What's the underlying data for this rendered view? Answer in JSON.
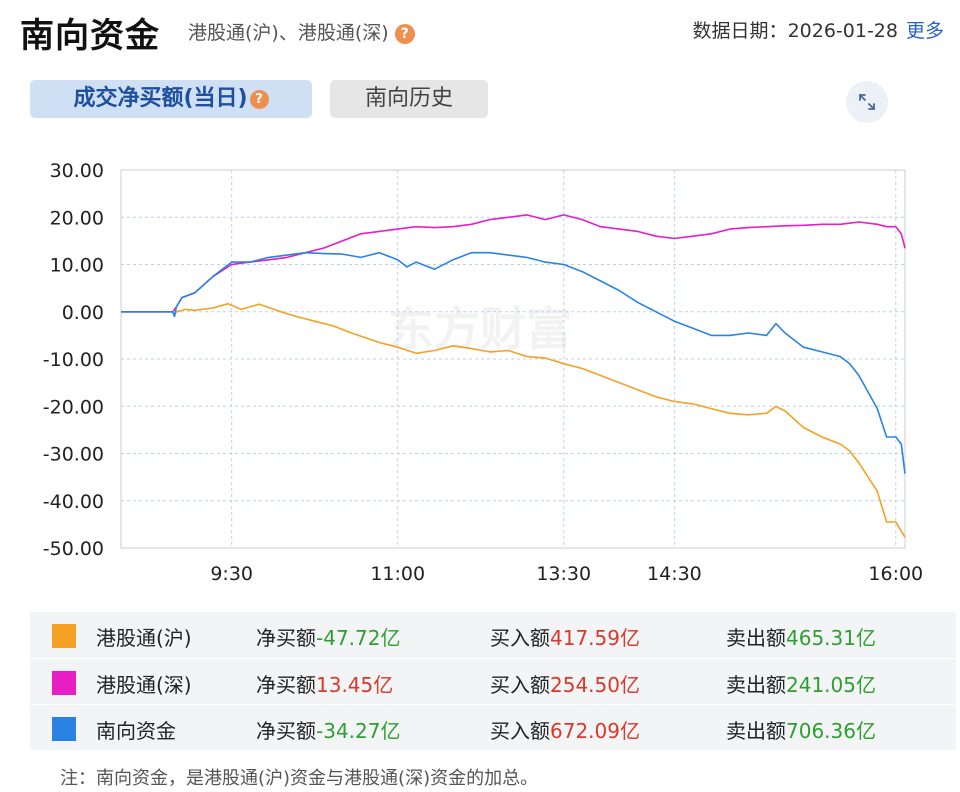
{
  "header": {
    "title": "南向资金",
    "subtitle": "港股通(沪)、港股通(深)",
    "date_label": "数据日期：",
    "date": "2026-01-28",
    "more": "更多"
  },
  "tabs": [
    {
      "label": "成交净买额(当日)",
      "active": true
    },
    {
      "label": "南向历史",
      "active": false
    }
  ],
  "watermark": "东方财富",
  "chart_data": {
    "type": "line",
    "xlabel": "",
    "ylabel": "",
    "y_ticks": [
      "30.00",
      "20.00",
      "10.00",
      "0.00",
      "-10.00",
      "-20.00",
      "-30.00",
      "-40.00",
      "-50.00"
    ],
    "ylim": [
      -50,
      30
    ],
    "x_ticks": [
      "9:30",
      "11:00",
      "13:30",
      "14:30",
      "16:00"
    ],
    "x_tick_minutes": [
      30,
      120,
      210,
      270,
      390
    ],
    "xlim": [
      -30,
      395
    ],
    "grid": true,
    "series": [
      {
        "name": "港股通(沪)",
        "color": "#f4a124",
        "points": [
          [
            -30,
            0
          ],
          [
            -2,
            0
          ],
          [
            -1,
            -0.8
          ],
          [
            0,
            0
          ],
          [
            5,
            0.5
          ],
          [
            10,
            0.3
          ],
          [
            20,
            0.8
          ],
          [
            28,
            1.7
          ],
          [
            35,
            0.5
          ],
          [
            45,
            1.6
          ],
          [
            55,
            0.2
          ],
          [
            65,
            -1
          ],
          [
            75,
            -2
          ],
          [
            85,
            -3
          ],
          [
            95,
            -4.5
          ],
          [
            110,
            -6.5
          ],
          [
            120,
            -7.5
          ],
          [
            130,
            -8.8
          ],
          [
            140,
            -8.2
          ],
          [
            150,
            -7.2
          ],
          [
            160,
            -7.8
          ],
          [
            170,
            -8.5
          ],
          [
            180,
            -8.2
          ],
          [
            190,
            -9.5
          ],
          [
            200,
            -9.8
          ],
          [
            210,
            -11
          ],
          [
            220,
            -12
          ],
          [
            230,
            -13.5
          ],
          [
            240,
            -15
          ],
          [
            250,
            -16.5
          ],
          [
            260,
            -18
          ],
          [
            270,
            -19
          ],
          [
            280,
            -19.5
          ],
          [
            290,
            -20.5
          ],
          [
            300,
            -21.5
          ],
          [
            310,
            -21.8
          ],
          [
            320,
            -21.5
          ],
          [
            325,
            -20
          ],
          [
            330,
            -21
          ],
          [
            340,
            -24.5
          ],
          [
            350,
            -26.5
          ],
          [
            360,
            -28
          ],
          [
            365,
            -29.5
          ],
          [
            370,
            -32
          ],
          [
            375,
            -35
          ],
          [
            380,
            -38
          ],
          [
            385,
            -44.5
          ],
          [
            390,
            -44.5
          ],
          [
            395,
            -47.72
          ]
        ]
      },
      {
        "name": "港股通(深)",
        "color": "#e61ec3",
        "points": [
          [
            -30,
            0
          ],
          [
            -2,
            0
          ],
          [
            0,
            1
          ],
          [
            3,
            3
          ],
          [
            10,
            4
          ],
          [
            20,
            7.5
          ],
          [
            30,
            10
          ],
          [
            40,
            10.5
          ],
          [
            50,
            11
          ],
          [
            60,
            11.5
          ],
          [
            70,
            12.5
          ],
          [
            80,
            13.5
          ],
          [
            90,
            15
          ],
          [
            100,
            16.5
          ],
          [
            110,
            17
          ],
          [
            120,
            17.5
          ],
          [
            130,
            18
          ],
          [
            140,
            17.8
          ],
          [
            150,
            18
          ],
          [
            160,
            18.5
          ],
          [
            170,
            19.5
          ],
          [
            180,
            20
          ],
          [
            190,
            20.5
          ],
          [
            200,
            19.5
          ],
          [
            210,
            20.5
          ],
          [
            220,
            19.5
          ],
          [
            230,
            18
          ],
          [
            240,
            17.5
          ],
          [
            250,
            17
          ],
          [
            260,
            16
          ],
          [
            270,
            15.5
          ],
          [
            280,
            16
          ],
          [
            290,
            16.5
          ],
          [
            300,
            17.5
          ],
          [
            310,
            17.8
          ],
          [
            320,
            18
          ],
          [
            330,
            18.2
          ],
          [
            340,
            18.3
          ],
          [
            350,
            18.5
          ],
          [
            360,
            18.5
          ],
          [
            370,
            19
          ],
          [
            380,
            18.5
          ],
          [
            385,
            18
          ],
          [
            390,
            18
          ],
          [
            393,
            16.5
          ],
          [
            395,
            13.45
          ]
        ]
      },
      {
        "name": "南向资金",
        "color": "#2a82e4",
        "points": [
          [
            -30,
            0
          ],
          [
            -2,
            0
          ],
          [
            -1,
            -1
          ],
          [
            0,
            1
          ],
          [
            3,
            3
          ],
          [
            10,
            4
          ],
          [
            20,
            7.5
          ],
          [
            30,
            10.5
          ],
          [
            40,
            10.5
          ],
          [
            50,
            11.5
          ],
          [
            60,
            12
          ],
          [
            70,
            12.5
          ],
          [
            80,
            12.3
          ],
          [
            90,
            12.2
          ],
          [
            100,
            11.5
          ],
          [
            110,
            12.5
          ],
          [
            120,
            11
          ],
          [
            125,
            9.5
          ],
          [
            130,
            10.5
          ],
          [
            140,
            9
          ],
          [
            150,
            11
          ],
          [
            160,
            12.5
          ],
          [
            170,
            12.5
          ],
          [
            180,
            12
          ],
          [
            190,
            11.5
          ],
          [
            200,
            10.5
          ],
          [
            210,
            10
          ],
          [
            220,
            8.5
          ],
          [
            230,
            6.5
          ],
          [
            240,
            4.5
          ],
          [
            250,
            2
          ],
          [
            260,
            0
          ],
          [
            270,
            -2
          ],
          [
            280,
            -3.5
          ],
          [
            290,
            -5
          ],
          [
            300,
            -5
          ],
          [
            310,
            -4.5
          ],
          [
            320,
            -5
          ],
          [
            325,
            -2.5
          ],
          [
            330,
            -4.5
          ],
          [
            340,
            -7.5
          ],
          [
            350,
            -8.5
          ],
          [
            360,
            -9.5
          ],
          [
            365,
            -11
          ],
          [
            370,
            -13.5
          ],
          [
            375,
            -17
          ],
          [
            380,
            -20.5
          ],
          [
            385,
            -26.5
          ],
          [
            390,
            -26.5
          ],
          [
            393,
            -28
          ],
          [
            395,
            -34.27
          ]
        ]
      }
    ]
  },
  "legend_rows": [
    {
      "name": "港股通(沪)",
      "color": "#f4a124",
      "net_label": "净买额",
      "net": "-47.72亿",
      "buy_label": "买入额",
      "buy": "417.59亿",
      "sell_label": "卖出额",
      "sell": "465.31亿"
    },
    {
      "name": "港股通(深)",
      "color": "#e61ec3",
      "net_label": "净买额",
      "net": "13.45亿",
      "buy_label": "买入额",
      "buy": "254.50亿",
      "sell_label": "卖出额",
      "sell": "241.05亿"
    },
    {
      "name": "南向资金",
      "color": "#2a82e4",
      "net_label": "净买额",
      "net": "-34.27亿",
      "buy_label": "买入额",
      "buy": "672.09亿",
      "sell_label": "卖出额",
      "sell": "706.36亿"
    }
  ],
  "note": "注：南向资金，是港股通(沪)资金与港股通(深)资金的加总。"
}
